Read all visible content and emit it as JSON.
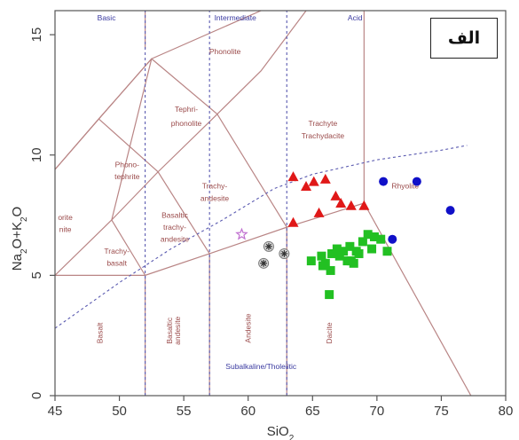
{
  "panel_label": "الف",
  "chart_data": {
    "type": "scatter",
    "xlabel": "SiO",
    "xlabel_sub": "2",
    "ylabel_parts": [
      "Na",
      "2",
      "O+K",
      "2",
      "O"
    ],
    "xlim": [
      45,
      80
    ],
    "ylim": [
      0,
      16
    ],
    "x_ticks": [
      45,
      50,
      55,
      60,
      65,
      70,
      75,
      80
    ],
    "y_ticks": [
      0,
      5,
      10,
      15
    ],
    "colors": {
      "boundary": "#b98585",
      "dashed": "#5a5ab0",
      "red": "#e01818",
      "blue": "#1010c8",
      "green": "#22c022",
      "gray": "#777777",
      "violet": "#c070d0",
      "axis": "#555555"
    },
    "boundaries": [
      [
        [
          41,
          7
        ],
        [
          45,
          9.4
        ],
        [
          48.4,
          11.5
        ],
        [
          52.5,
          14
        ],
        [
          49.4,
          7.3
        ],
        [
          45,
          5
        ],
        [
          41,
          3
        ]
      ],
      [
        [
          45,
          5
        ],
        [
          52,
          5
        ],
        [
          52,
          0
        ]
      ],
      [
        [
          57,
          0
        ],
        [
          57,
          5.9
        ],
        [
          63,
          7
        ],
        [
          63,
          0
        ]
      ],
      [
        [
          52,
          5
        ],
        [
          57,
          5.9
        ]
      ],
      [
        [
          63,
          7
        ],
        [
          69,
          8
        ]
      ],
      [
        [
          69,
          8
        ],
        [
          69,
          16
        ]
      ],
      [
        [
          69,
          8
        ],
        [
          77.3,
          0
        ]
      ],
      [
        [
          49.4,
          7.3
        ],
        [
          52,
          5
        ]
      ],
      [
        [
          49.4,
          7.3
        ],
        [
          53,
          9.3
        ],
        [
          57.6,
          11.7
        ],
        [
          61,
          13.5
        ],
        [
          64.5,
          16
        ]
      ],
      [
        [
          53,
          9.3
        ],
        [
          57,
          5.9
        ]
      ],
      [
        [
          57.6,
          11.7
        ],
        [
          63,
          7
        ]
      ],
      [
        [
          45,
          9.4
        ],
        [
          48.4,
          11.5
        ],
        [
          52.5,
          14
        ],
        [
          57.6,
          11.7
        ]
      ],
      [
        [
          52.5,
          14
        ],
        [
          61,
          16
        ]
      ],
      [
        [
          48.4,
          11.5
        ],
        [
          53,
          9.3
        ]
      ],
      [
        [
          52,
          14.4
        ],
        [
          52,
          16
        ]
      ]
    ],
    "dashed_lines": [
      [
        [
          52,
          0
        ],
        [
          52,
          16
        ]
      ],
      [
        [
          57,
          0
        ],
        [
          57,
          16
        ]
      ],
      [
        [
          63,
          0
        ],
        [
          63,
          16
        ]
      ],
      [
        [
          45,
          2.8
        ],
        [
          50,
          4.7
        ],
        [
          54,
          6.1
        ],
        [
          58,
          7.3
        ],
        [
          62,
          8.6
        ],
        [
          65,
          9.2
        ],
        [
          70,
          9.8
        ],
        [
          75,
          10.2
        ],
        [
          77,
          10.4
        ]
      ]
    ],
    "region_labels": [
      {
        "text": "Phonolite",
        "x": 58.2,
        "y": 14.2
      },
      {
        "text": "Tephri-",
        "x": 55.2,
        "y": 11.8
      },
      {
        "text": "phonolite",
        "x": 55.2,
        "y": 11.2
      },
      {
        "text": "Trachyte",
        "x": 65.8,
        "y": 11.2
      },
      {
        "text": "Trachydacite",
        "x": 65.8,
        "y": 10.7
      },
      {
        "text": "Phono-",
        "x": 50.6,
        "y": 9.5
      },
      {
        "text": "tephrite",
        "x": 50.6,
        "y": 9.0
      },
      {
        "text": "Trachy-",
        "x": 57.4,
        "y": 8.6
      },
      {
        "text": "andesite",
        "x": 57.4,
        "y": 8.1
      },
      {
        "text": "Basaltic",
        "x": 54.3,
        "y": 7.4
      },
      {
        "text": "trachy-",
        "x": 54.3,
        "y": 6.9
      },
      {
        "text": "andesite",
        "x": 54.3,
        "y": 6.4
      },
      {
        "text": "Trachy-",
        "x": 49.8,
        "y": 5.9
      },
      {
        "text": "basalt",
        "x": 49.8,
        "y": 5.4
      },
      {
        "text": "Rhyolite",
        "x": 72.2,
        "y": 8.6
      },
      {
        "text": "orite",
        "x": 45.8,
        "y": 7.3
      },
      {
        "text": "nite",
        "x": 45.8,
        "y": 6.8
      }
    ],
    "vertical_labels": [
      {
        "text": "Basalt",
        "x": 48.7,
        "y": 2.6
      },
      {
        "text": "Basaltic",
        "x": 54.1,
        "y": 2.7
      },
      {
        "text": "andesite",
        "x": 54.7,
        "y": 2.7
      },
      {
        "text": "Andesite",
        "x": 60.2,
        "y": 2.8
      },
      {
        "text": "Dacite",
        "x": 66.5,
        "y": 2.6
      }
    ],
    "series_labels": [
      {
        "text": "Basic",
        "x": 49.0,
        "y": 15.6
      },
      {
        "text": "Intermediate",
        "x": 59.0,
        "y": 15.6
      },
      {
        "text": "Acid",
        "x": 68.3,
        "y": 15.6
      },
      {
        "text": "Subalkaline/Tholeiitic",
        "x": 61.0,
        "y": 1.1
      }
    ],
    "series": [
      {
        "marker": "triangle",
        "color": "red",
        "points": [
          [
            63.5,
            9.1
          ],
          [
            64.5,
            8.7
          ],
          [
            65.1,
            8.9
          ],
          [
            66,
            9.0
          ],
          [
            66.8,
            8.3
          ],
          [
            67.2,
            8.0
          ],
          [
            68.0,
            7.9
          ],
          [
            69.0,
            7.9
          ],
          [
            65.5,
            7.6
          ],
          [
            63.5,
            7.2
          ]
        ]
      },
      {
        "marker": "circle",
        "color": "blue",
        "points": [
          [
            70.5,
            8.9
          ],
          [
            73.1,
            8.9
          ],
          [
            75.7,
            7.7
          ],
          [
            71.2,
            6.5
          ]
        ]
      },
      {
        "marker": "square",
        "color": "green",
        "points": [
          [
            64.9,
            5.6
          ],
          [
            65.7,
            5.8
          ],
          [
            66.0,
            5.5
          ],
          [
            66.5,
            5.9
          ],
          [
            66.9,
            6.1
          ],
          [
            67.4,
            6.0
          ],
          [
            67.9,
            6.2
          ],
          [
            68.4,
            6.0
          ],
          [
            68.9,
            6.4
          ],
          [
            69.3,
            6.7
          ],
          [
            69.8,
            6.6
          ],
          [
            70.3,
            6.5
          ],
          [
            68.0,
            5.6
          ],
          [
            68.6,
            5.9
          ],
          [
            67.7,
            5.6
          ],
          [
            66.4,
            5.2
          ],
          [
            65.8,
            5.4
          ],
          [
            67.1,
            5.8
          ],
          [
            70.8,
            6.0
          ],
          [
            69.6,
            6.1
          ],
          [
            68.2,
            5.5
          ],
          [
            66.3,
            4.2
          ]
        ]
      },
      {
        "marker": "asterisk",
        "color": "gray",
        "points": [
          [
            61.6,
            6.2
          ],
          [
            61.2,
            5.5
          ],
          [
            62.8,
            5.9
          ]
        ]
      },
      {
        "marker": "open-star",
        "color": "violet",
        "points": [
          [
            59.5,
            6.7
          ]
        ]
      }
    ]
  }
}
